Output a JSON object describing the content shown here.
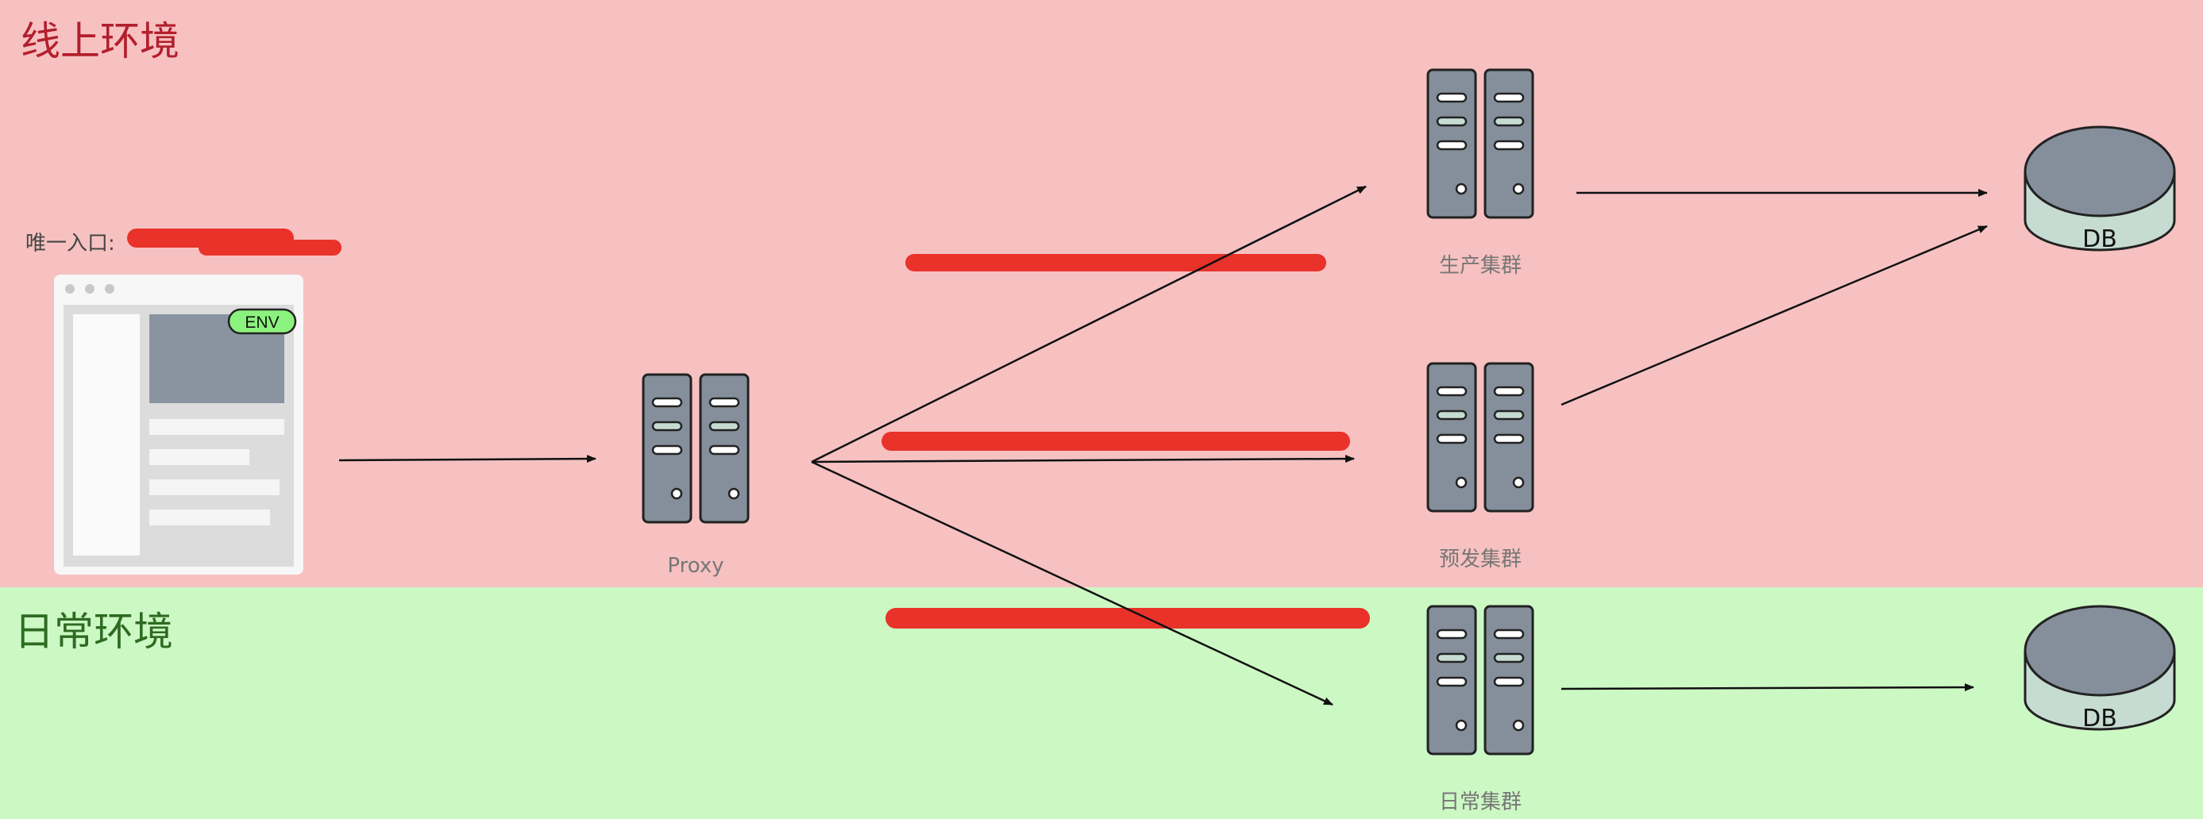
{
  "zones": {
    "online_title": "线上环境",
    "daily_title": "日常环境"
  },
  "entry": {
    "label": "唯一入口:",
    "env_badge": "ENV"
  },
  "nodes": {
    "proxy": "Proxy",
    "prod_cluster": "生产集群",
    "pre_cluster": "预发集群",
    "daily_cluster": "日常集群",
    "db_online": "DB",
    "db_daily": "DB"
  },
  "colors": {
    "online_zone": "#f7c1c1",
    "daily_zone": "#ccf8c4",
    "server_body": "#858f9b",
    "db_side": "#c6dcd2",
    "env_badge": "#8cf27e",
    "redaction": "#e8322a"
  }
}
